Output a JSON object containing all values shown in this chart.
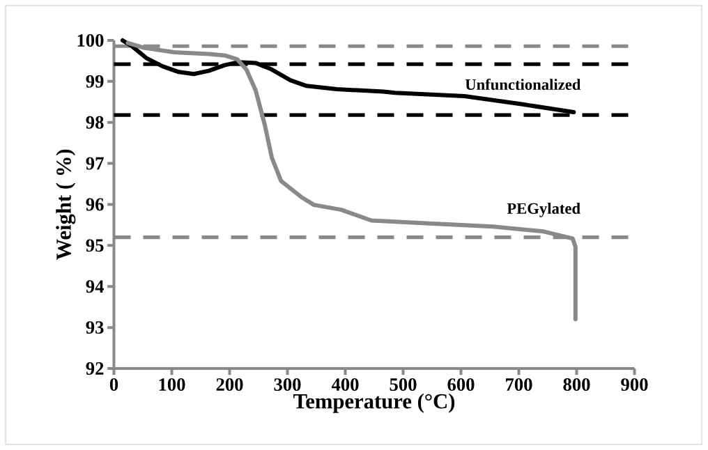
{
  "chart_data": {
    "type": "line",
    "xlabel": "Temperature (°C)",
    "ylabel": "Weight ( %)",
    "xlim": [
      0,
      900
    ],
    "xticks": [
      0,
      100,
      200,
      300,
      400,
      500,
      600,
      700,
      800,
      900
    ],
    "ylim": [
      92,
      100
    ],
    "yticks": [
      92,
      93,
      94,
      95,
      96,
      97,
      98,
      99,
      100
    ],
    "grid": false,
    "legend": false,
    "marker": "none",
    "line_style": "solid",
    "series": [
      {
        "name": "Unfunctionalized",
        "color": "#000000",
        "x": [
          15,
          32,
          56,
          84,
          112,
          138,
          164,
          192,
          216,
          245,
          273,
          305,
          333,
          385,
          466,
          486,
          606,
          707,
          795
        ],
        "values": [
          100.0,
          99.85,
          99.57,
          99.37,
          99.23,
          99.18,
          99.26,
          99.4,
          99.47,
          99.45,
          99.29,
          99.03,
          98.89,
          98.81,
          98.75,
          98.72,
          98.64,
          98.44,
          98.25
        ]
      },
      {
        "name": "PEGylated",
        "color": "#898989",
        "x": [
          24,
          52,
          104,
          164,
          193,
          213,
          229,
          245,
          261,
          273,
          289,
          325,
          346,
          393,
          445,
          539,
          655,
          743,
          793,
          798,
          798
        ],
        "values": [
          99.94,
          99.82,
          99.71,
          99.67,
          99.63,
          99.54,
          99.29,
          98.78,
          97.93,
          97.14,
          96.57,
          96.17,
          95.99,
          95.87,
          95.61,
          95.54,
          95.46,
          95.34,
          95.17,
          94.97,
          93.2
        ]
      }
    ],
    "ref_lines": [
      {
        "axis": "y",
        "value": 99.86,
        "color": "#898989",
        "line_style": "dashed"
      },
      {
        "axis": "y",
        "value": 99.42,
        "color": "#000000",
        "line_style": "dashed"
      },
      {
        "axis": "y",
        "value": 98.18,
        "color": "#000000",
        "line_style": "dashed"
      },
      {
        "axis": "y",
        "value": 95.2,
        "color": "#898989",
        "line_style": "dashed"
      }
    ]
  }
}
